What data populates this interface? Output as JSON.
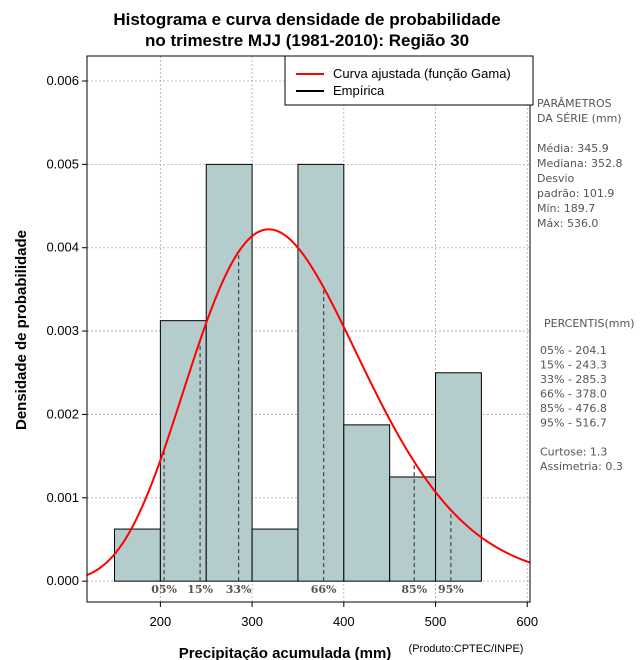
{
  "chart_data": {
    "type": "histogram",
    "title": [
      "Histograma e curva densidade de probabilidade",
      "no trimestre MJJ (1981-2010): Região 30"
    ],
    "xlabel": "Precipitação acumulada (mm)",
    "ylabel": "Densidade de probabilidade",
    "credit": "(Produto:CPTEC/INPE)",
    "xlim": [
      120,
      603
    ],
    "ylim": [
      -0.00025,
      0.0063
    ],
    "x_ticks": [
      200,
      300,
      400,
      500,
      600
    ],
    "y_ticks": [
      0.0,
      0.001,
      0.002,
      0.003,
      0.004,
      0.005,
      0.006
    ],
    "y_tick_labels": [
      "0.000",
      "0.001",
      "0.002",
      "0.003",
      "0.004",
      "0.005",
      "0.006"
    ],
    "grid": true,
    "bins": [
      {
        "start": 150,
        "end": 200,
        "density": 0.000625
      },
      {
        "start": 200,
        "end": 250,
        "density": 0.003125
      },
      {
        "start": 250,
        "end": 300,
        "density": 0.005
      },
      {
        "start": 300,
        "end": 350,
        "density": 0.000625
      },
      {
        "start": 350,
        "end": 400,
        "density": 0.005
      },
      {
        "start": 400,
        "end": 450,
        "density": 0.001875
      },
      {
        "start": 450,
        "end": 500,
        "density": 0.00125
      },
      {
        "start": 500,
        "end": 550,
        "density": 0.0025
      }
    ],
    "gamma_fit": {
      "shape": 12.5,
      "scale": 27.67,
      "x_range": [
        120,
        603
      ]
    },
    "percentile_markers": [
      {
        "label": "05%",
        "value": 204.1
      },
      {
        "label": "15%",
        "value": 243.3
      },
      {
        "label": "33%",
        "value": 285.3
      },
      {
        "label": "66%",
        "value": 378.0
      },
      {
        "label": "85%",
        "value": 476.8
      },
      {
        "label": "95%",
        "value": 516.7
      }
    ],
    "legend": [
      {
        "label": "Curva ajustada (função Gama)",
        "color": "#ff0000"
      },
      {
        "label": "Empírica",
        "color": "#000000"
      }
    ],
    "colors": {
      "bar_fill": "#b4cccc",
      "bar_stroke": "#000000",
      "curve": "#ff0000",
      "grid": "#aaaaaa",
      "side_text": "#555555"
    }
  },
  "side_panel": {
    "params_lines": [
      "PARÂMETROS",
      " DA SÉRIE (mm)",
      "",
      "Média:  345.9",
      "Mediana:  352.8",
      "Desvio",
      "padrão:  101.9",
      "Mín:  189.7",
      "Máx:  536.0"
    ],
    "percentis_lines": [
      "PERCENTIS(mm)",
      "",
      "05% -  204.1",
      "15% -  243.3",
      "33% -  285.3",
      "66% -  378.0",
      "85% -  476.8",
      "95% -  516.7",
      "",
      "Curtose:  1.3",
      "Assimetria:  0.3"
    ]
  }
}
